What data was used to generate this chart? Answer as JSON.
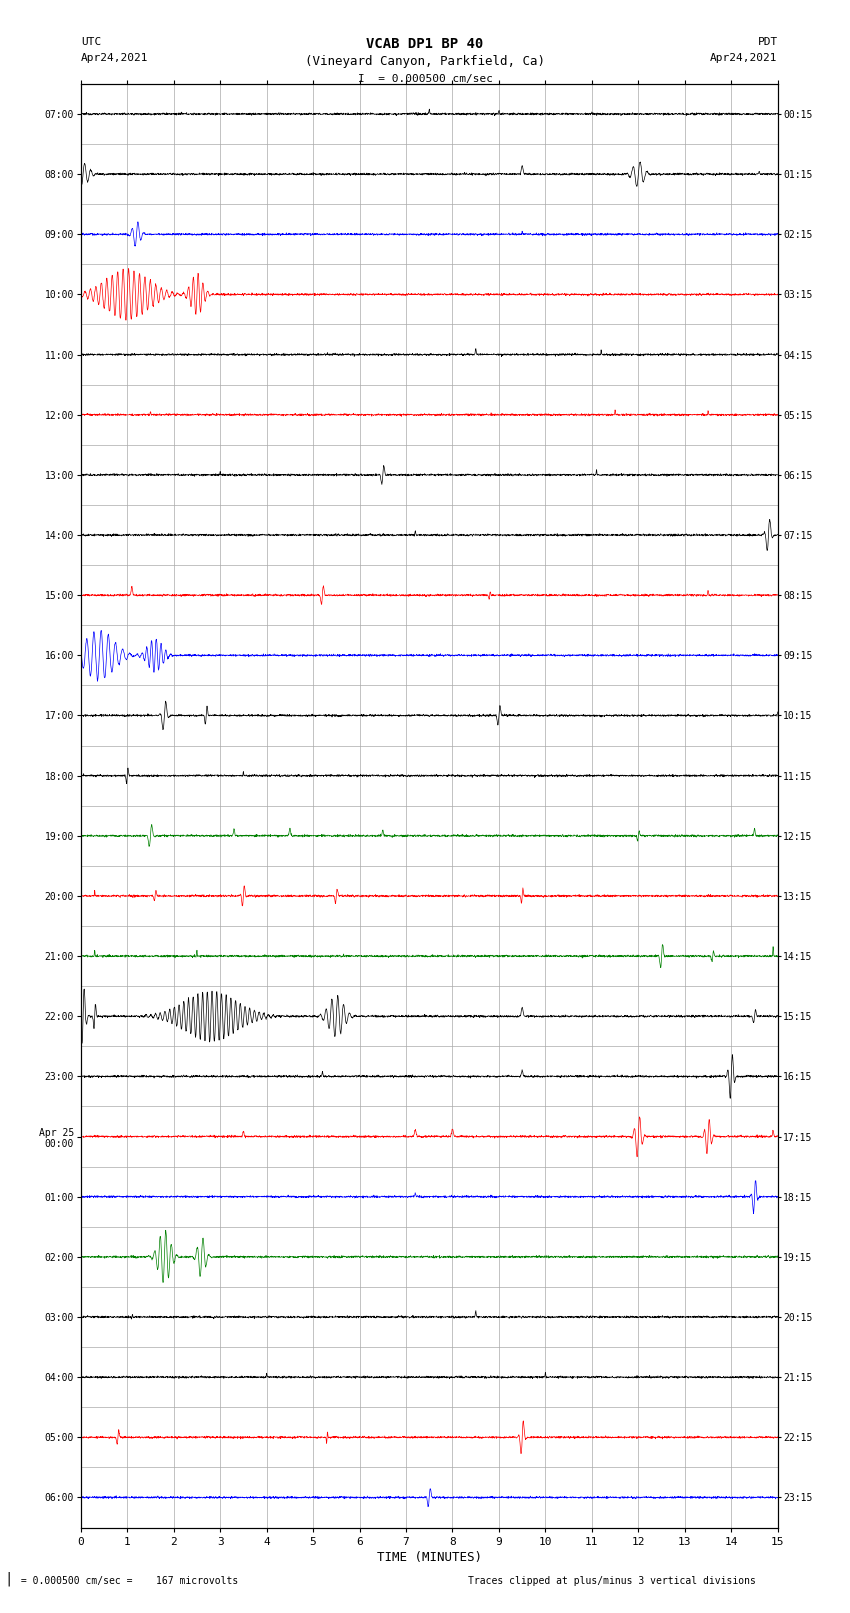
{
  "title_line1": "VCAB DP1 BP 40",
  "title_line2": "(Vineyard Canyon, Parkfield, Ca)",
  "scale_text": "I  = 0.000500 cm/sec",
  "xlabel": "TIME (MINUTES)",
  "footer_left": " = 0.000500 cm/sec =    167 microvolts",
  "footer_right": "Traces clipped at plus/minus 3 vertical divisions",
  "x_min": 0,
  "x_max": 15,
  "x_ticks": [
    0,
    1,
    2,
    3,
    4,
    5,
    6,
    7,
    8,
    9,
    10,
    11,
    12,
    13,
    14,
    15
  ],
  "num_traces": 24,
  "background_color": "#ffffff",
  "grid_color": "#aaaaaa",
  "left_times": [
    "07:00",
    "08:00",
    "09:00",
    "10:00",
    "11:00",
    "12:00",
    "13:00",
    "14:00",
    "15:00",
    "16:00",
    "17:00",
    "18:00",
    "19:00",
    "20:00",
    "21:00",
    "22:00",
    "23:00",
    "Apr 25\n00:00",
    "01:00",
    "02:00",
    "03:00",
    "04:00",
    "05:00",
    "06:00"
  ],
  "right_times": [
    "00:15",
    "01:15",
    "02:15",
    "03:15",
    "04:15",
    "05:15",
    "06:15",
    "07:15",
    "08:15",
    "09:15",
    "10:15",
    "11:15",
    "12:15",
    "13:15",
    "14:15",
    "15:15",
    "16:15",
    "17:15",
    "18:15",
    "19:15",
    "20:15",
    "21:15",
    "22:15",
    "23:15"
  ],
  "trace_colors": [
    "black",
    "black",
    "blue",
    "red",
    "black",
    "red",
    "black",
    "black",
    "red",
    "blue",
    "black",
    "black",
    "green",
    "red",
    "green",
    "black",
    "black",
    "red",
    "blue",
    "green",
    "black",
    "black",
    "red",
    "blue"
  ],
  "events": [
    [
      [
        7.5,
        0.03,
        0.08
      ],
      [
        9.0,
        0.02,
        0.06
      ],
      [
        11.0,
        0.02,
        0.05
      ]
    ],
    [
      [
        0.05,
        0.4,
        0.18
      ],
      [
        9.5,
        0.06,
        0.14
      ],
      [
        12.0,
        0.35,
        0.22
      ],
      [
        14.6,
        0.02,
        0.05
      ]
    ],
    [
      [
        1.2,
        0.25,
        0.22
      ],
      [
        9.5,
        0.02,
        0.05
      ]
    ],
    [
      [
        1.0,
        1.5,
        0.42
      ],
      [
        2.5,
        0.4,
        0.35
      ]
    ],
    [
      [
        8.5,
        0.03,
        0.1
      ],
      [
        11.2,
        0.02,
        0.06
      ]
    ],
    [
      [
        1.5,
        0.02,
        0.06
      ],
      [
        11.5,
        0.02,
        0.08
      ],
      [
        13.5,
        0.02,
        0.06
      ]
    ],
    [
      [
        3.0,
        0.02,
        0.06
      ],
      [
        6.5,
        0.1,
        0.22
      ],
      [
        11.1,
        0.02,
        0.1
      ]
    ],
    [
      [
        7.2,
        0.02,
        0.08
      ],
      [
        14.8,
        0.15,
        0.32
      ]
    ],
    [
      [
        1.1,
        0.05,
        0.14
      ],
      [
        5.2,
        0.08,
        0.28
      ],
      [
        8.8,
        0.04,
        0.18
      ],
      [
        13.5,
        0.03,
        0.08
      ]
    ],
    [
      [
        0.4,
        1.0,
        0.42
      ],
      [
        1.6,
        0.5,
        0.28
      ]
    ],
    [
      [
        1.8,
        0.15,
        0.3
      ],
      [
        2.7,
        0.08,
        0.22
      ],
      [
        9.0,
        0.1,
        0.22
      ],
      [
        15.0,
        0.02,
        0.06
      ]
    ],
    [
      [
        1.0,
        0.05,
        0.4
      ],
      [
        3.5,
        0.02,
        0.06
      ]
    ],
    [
      [
        1.5,
        0.12,
        0.25
      ],
      [
        3.3,
        0.04,
        0.12
      ],
      [
        4.5,
        0.05,
        0.12
      ],
      [
        6.5,
        0.04,
        0.1
      ],
      [
        12.0,
        0.06,
        0.18
      ],
      [
        14.5,
        0.04,
        0.12
      ]
    ],
    [
      [
        0.3,
        0.02,
        0.08
      ],
      [
        1.6,
        0.06,
        0.2
      ],
      [
        3.5,
        0.1,
        0.22
      ],
      [
        5.5,
        0.08,
        0.18
      ],
      [
        9.5,
        0.06,
        0.22
      ]
    ],
    [
      [
        0.3,
        0.02,
        0.1
      ],
      [
        2.5,
        0.02,
        0.1
      ],
      [
        12.5,
        0.1,
        0.28
      ],
      [
        13.6,
        0.06,
        0.2
      ],
      [
        14.9,
        0.02,
        0.15
      ]
    ],
    [
      [
        0.05,
        0.15,
        0.55
      ],
      [
        0.3,
        0.06,
        0.45
      ],
      [
        2.8,
        1.8,
        0.42
      ],
      [
        5.5,
        0.5,
        0.35
      ],
      [
        9.5,
        0.06,
        0.15
      ],
      [
        14.5,
        0.08,
        0.2
      ]
    ],
    [
      [
        5.2,
        0.03,
        0.08
      ],
      [
        9.5,
        0.05,
        0.1
      ],
      [
        14.0,
        0.15,
        0.42
      ]
    ],
    [
      [
        3.5,
        0.04,
        0.1
      ],
      [
        7.2,
        0.06,
        0.1
      ],
      [
        8.0,
        0.06,
        0.12
      ],
      [
        12.0,
        0.2,
        0.38
      ],
      [
        13.5,
        0.18,
        0.32
      ],
      [
        14.9,
        0.04,
        0.1
      ]
    ],
    [
      [
        7.2,
        0.03,
        0.07
      ],
      [
        14.5,
        0.12,
        0.35
      ]
    ],
    [
      [
        1.8,
        0.4,
        0.45
      ],
      [
        2.6,
        0.25,
        0.35
      ]
    ],
    [
      [
        1.1,
        0.03,
        0.18
      ],
      [
        8.5,
        0.03,
        0.1
      ]
    ],
    [
      [
        4.0,
        0.02,
        0.06
      ],
      [
        10.0,
        0.02,
        0.08
      ]
    ],
    [
      [
        0.8,
        0.06,
        0.3
      ],
      [
        5.3,
        0.03,
        0.35
      ],
      [
        9.5,
        0.12,
        0.35
      ]
    ],
    [
      [
        7.5,
        0.1,
        0.22
      ]
    ]
  ],
  "noise_level": 0.008
}
